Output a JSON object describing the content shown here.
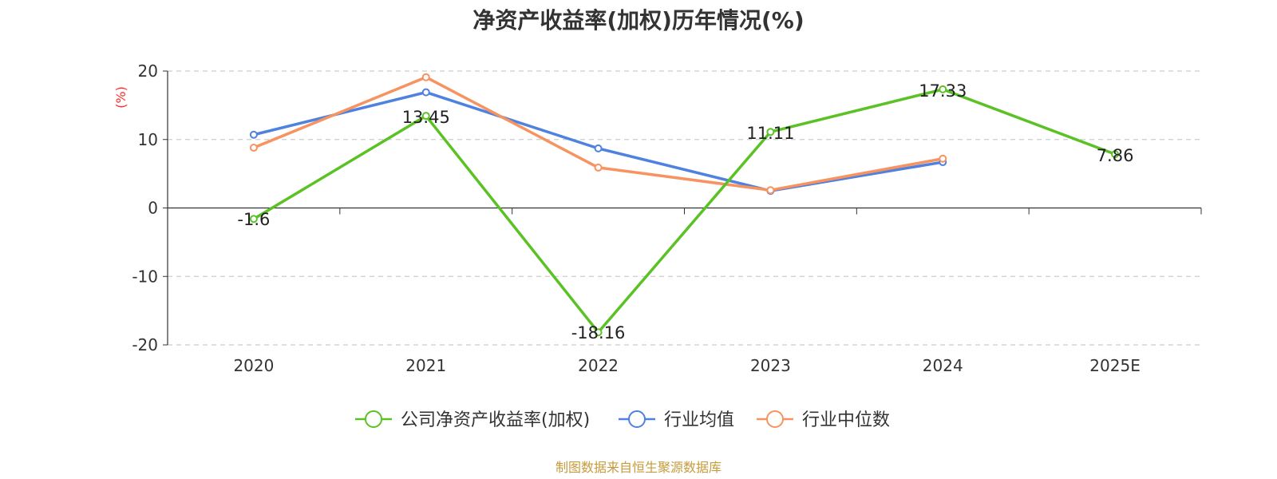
{
  "title": "净资产收益率(加权)历年情况(%)",
  "source": "制图数据来自恒生聚源数据库",
  "chart_data": {
    "type": "line",
    "title": "净资产收益率(加权)历年情况(%)",
    "ylabel": "(%)",
    "xlabel": "",
    "categories": [
      "2020",
      "2021",
      "2022",
      "2023",
      "2024",
      "2025E"
    ],
    "ylim": [
      -20,
      20
    ],
    "yticks": [
      20,
      10,
      0,
      -10,
      -20
    ],
    "grid": true,
    "legend_position": "bottom",
    "series": [
      {
        "name": "公司净资产收益率(加权)",
        "color": "#5bc226",
        "values": [
          -1.6,
          13.45,
          -18.16,
          11.11,
          17.33,
          7.86
        ],
        "labels": [
          "-1.6",
          "13.45",
          "-18.16",
          "11.11",
          "17.33",
          "7.86"
        ]
      },
      {
        "name": "行业均值",
        "color": "#4f81e0",
        "values": [
          10.7,
          16.9,
          8.7,
          2.5,
          6.7,
          null
        ]
      },
      {
        "name": "行业中位数",
        "color": "#f79361",
        "values": [
          8.8,
          19.1,
          5.9,
          2.6,
          7.2,
          null
        ]
      }
    ]
  }
}
